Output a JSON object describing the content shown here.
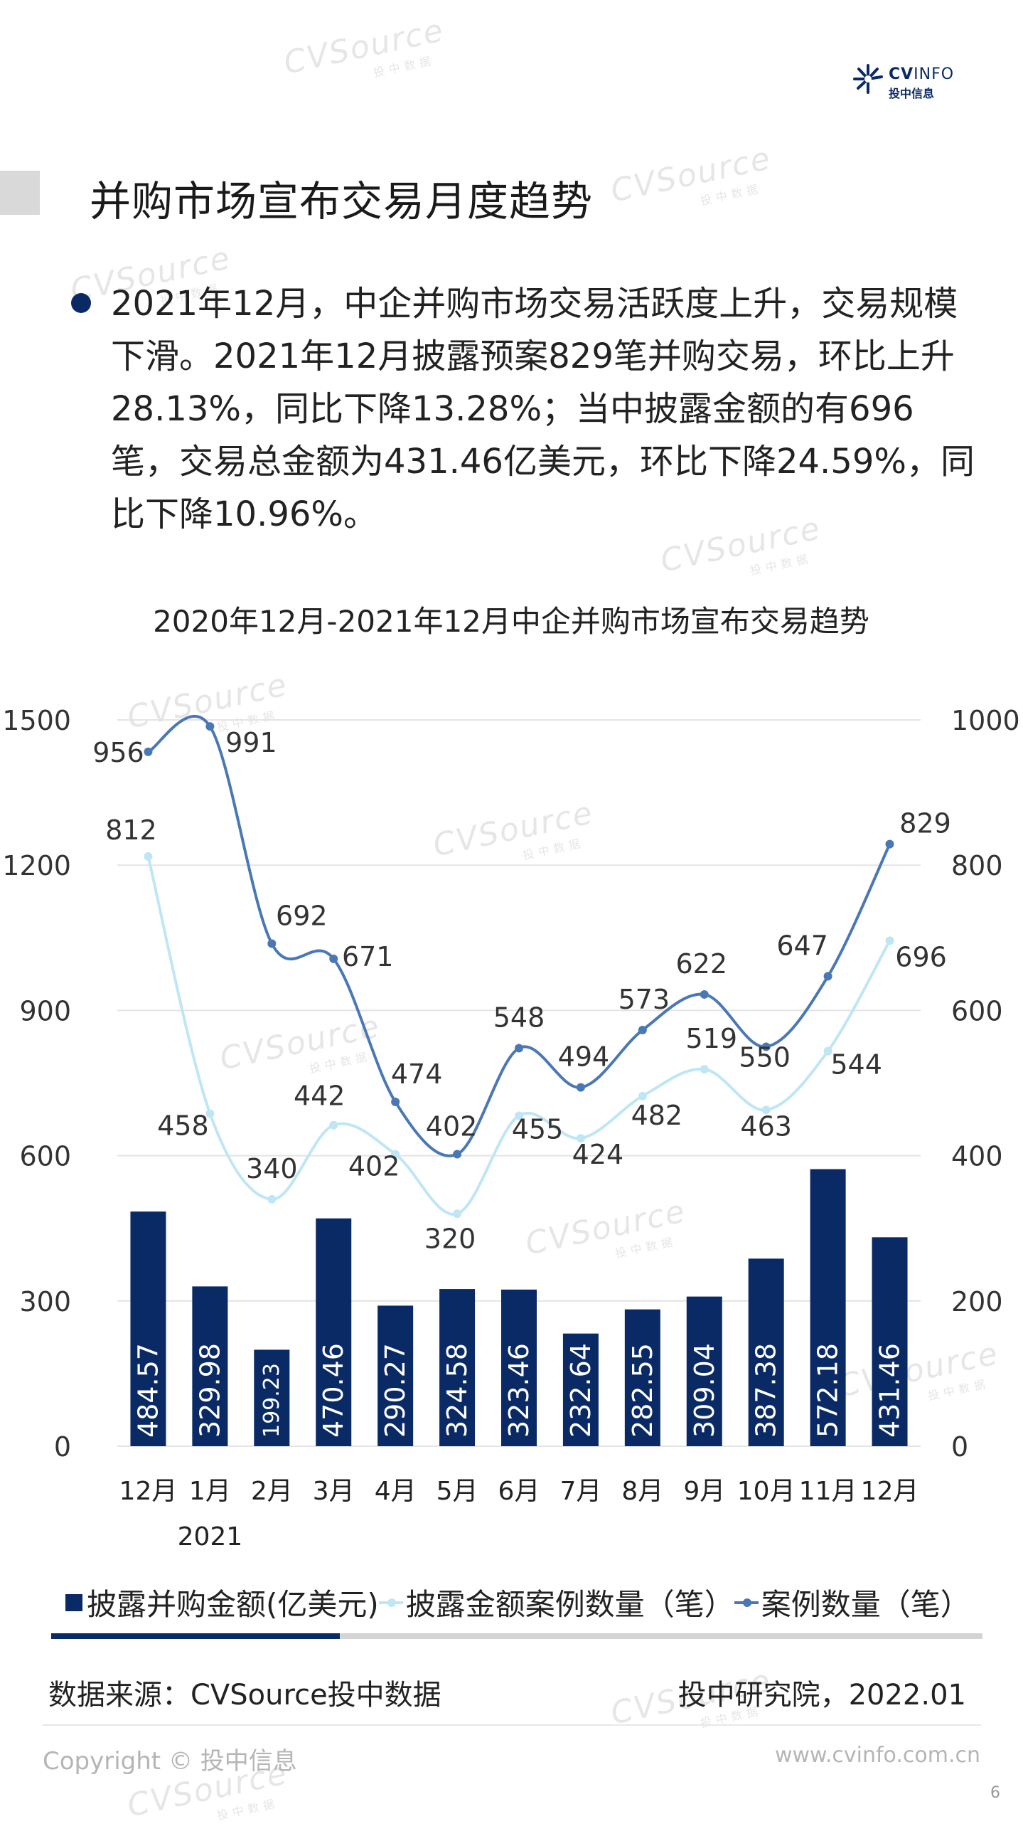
{
  "header": {
    "logo_main": "CV",
    "logo_main_thin": "INFO",
    "logo_sub": "投中信息",
    "title": "并购市场宣布交易月度趋势"
  },
  "summary": "2021年12月，中企并购市场交易活跃度上升，交易规模下滑。2021年12月披露预案829笔并购交易，环比上升28.13%，同比下降13.28%；当中披露金额的有696笔，交易总金额为431.46亿美元，环比下降24.59%，同比下降10.96%。",
  "watermark": {
    "text": "CVSource",
    "sub": "投中数据"
  },
  "chart_data": {
    "type": "bar",
    "title": "2020年12月-2021年12月中企并购市场宣布交易趋势",
    "categories": [
      "12月",
      "1月",
      "2月",
      "3月",
      "4月",
      "5月",
      "6月",
      "7月",
      "8月",
      "9月",
      "10月",
      "11月",
      "12月"
    ],
    "category_sublabel": {
      "index": 1,
      "text": "2021"
    },
    "y_left": {
      "range": [
        0,
        1500
      ],
      "ticks": [
        "0",
        "300",
        "600",
        "900",
        "1200",
        "1500"
      ]
    },
    "y_right": {
      "range": [
        0,
        1000
      ],
      "ticks": [
        "0",
        "200",
        "400",
        "600",
        "800",
        "1000"
      ]
    },
    "grid": true,
    "legend_position": "bottom",
    "series": [
      {
        "name": "披露并购金额(亿美元)",
        "kind": "bar",
        "axis": "left",
        "color": "#0a2a66",
        "values": [
          484.57,
          329.98,
          199.23,
          470.46,
          290.27,
          324.58,
          323.46,
          232.64,
          282.55,
          309.04,
          387.38,
          572.18,
          431.46
        ]
      },
      {
        "name": "披露金额案例数量（笔）",
        "kind": "line",
        "axis": "right",
        "color": "#bfe6f5",
        "values": [
          812,
          458,
          340,
          442,
          402,
          320,
          455,
          424,
          482,
          519,
          463,
          544,
          696
        ]
      },
      {
        "name": "案例数量（笔）",
        "kind": "line",
        "axis": "right",
        "color": "#4a78b4",
        "values": [
          956,
          991,
          692,
          671,
          474,
          402,
          548,
          494,
          573,
          622,
          550,
          647,
          829
        ]
      }
    ]
  },
  "legend_progress": 0.31,
  "footer": {
    "source": "数据来源：CVSource投中数据",
    "org_date": "投中研究院，2022.01",
    "copyright": "Copyright © 投中信息",
    "site": "www.cvinfo.com.cn",
    "page": "6"
  }
}
